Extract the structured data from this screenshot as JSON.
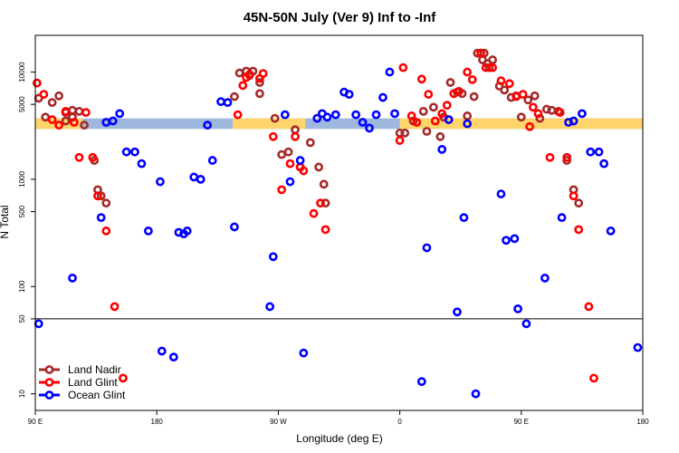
{
  "chart_data": {
    "type": "scatter",
    "title": "45N-50N July (Ver 9)   Inf to -Inf",
    "xlabel": "Longitude (deg E)",
    "ylabel": "N Total",
    "y_scale": "log",
    "xlim": [
      0,
      360
    ],
    "ylim": [
      7,
      22000
    ],
    "x_ticks": [
      {
        "x": 0,
        "label": "90 E"
      },
      {
        "x": 72,
        "label": "180"
      },
      {
        "x": 144,
        "label": "90 W"
      },
      {
        "x": 216,
        "label": "0"
      },
      {
        "x": 288,
        "label": "90 E"
      },
      {
        "x": 360,
        "label": "180"
      }
    ],
    "y_ticks": [
      {
        "v": 10,
        "label": "10"
      },
      {
        "v": 50,
        "label": "50"
      },
      {
        "v": 100,
        "label": "100"
      },
      {
        "v": 500,
        "label": "500"
      },
      {
        "v": 1000,
        "label": "1000"
      },
      {
        "v": 5000,
        "label": "5000"
      },
      {
        "v": 10000,
        "label": "10000"
      }
    ],
    "divider_y": 50,
    "grid": false,
    "legend_position": "bottom-left",
    "colors": {
      "land_mask": "#FFD56B",
      "ocean_mask": "#9FB7DD"
    },
    "mask_band": {
      "y_top": 3700,
      "y_bottom": 2950,
      "land_x_ranges": [
        [
          0,
          28
        ],
        [
          117,
          160
        ],
        [
          216,
          360
        ]
      ]
    },
    "series": [
      {
        "name": "Land Nadir",
        "color": "#A52A2A",
        "points": [
          [
            2,
            5700
          ],
          [
            6,
            3800
          ],
          [
            10,
            5200
          ],
          [
            14,
            6000
          ],
          [
            18,
            3500
          ],
          [
            18,
            4200
          ],
          [
            22,
            3800
          ],
          [
            22,
            4400
          ],
          [
            26,
            4300
          ],
          [
            29,
            3200
          ],
          [
            35,
            1500
          ],
          [
            37,
            800
          ],
          [
            39,
            700
          ],
          [
            42,
            600
          ],
          [
            118,
            5900
          ],
          [
            121,
            9800
          ],
          [
            125,
            10200
          ],
          [
            127,
            9300
          ],
          [
            129,
            10200
          ],
          [
            133,
            6300
          ],
          [
            133,
            8000
          ],
          [
            142,
            3700
          ],
          [
            146,
            1700
          ],
          [
            150,
            1800
          ],
          [
            154,
            2900
          ],
          [
            157,
            1300
          ],
          [
            163,
            2200
          ],
          [
            168,
            1300
          ],
          [
            171,
            900
          ],
          [
            172,
            600
          ],
          [
            216,
            2700
          ],
          [
            219,
            2700
          ],
          [
            224,
            3500
          ],
          [
            230,
            4300
          ],
          [
            232,
            2800
          ],
          [
            236,
            4700
          ],
          [
            240,
            2500
          ],
          [
            242,
            3800
          ],
          [
            246,
            8000
          ],
          [
            250,
            6500
          ],
          [
            253,
            6300
          ],
          [
            256,
            3900
          ],
          [
            260,
            5900
          ],
          [
            262,
            15000
          ],
          [
            265,
            13000
          ],
          [
            266,
            15000
          ],
          [
            268,
            12000
          ],
          [
            269,
            11000
          ],
          [
            271,
            13000
          ],
          [
            275,
            7400
          ],
          [
            278,
            6800
          ],
          [
            282,
            5800
          ],
          [
            285,
            6000
          ],
          [
            288,
            3800
          ],
          [
            292,
            5500
          ],
          [
            296,
            6000
          ],
          [
            299,
            3700
          ],
          [
            303,
            4500
          ],
          [
            306,
            4400
          ],
          [
            310,
            4300
          ],
          [
            315,
            1500
          ],
          [
            319,
            800
          ],
          [
            322,
            600
          ]
        ]
      },
      {
        "name": "Land Glint",
        "color": "#FF0000",
        "points": [
          [
            1,
            7900
          ],
          [
            5,
            6200
          ],
          [
            10,
            3600
          ],
          [
            14,
            3200
          ],
          [
            18,
            4300
          ],
          [
            23,
            3400
          ],
          [
            26,
            1600
          ],
          [
            30,
            4200
          ],
          [
            34,
            1600
          ],
          [
            37,
            700
          ],
          [
            42,
            330
          ],
          [
            47,
            65
          ],
          [
            52,
            14
          ],
          [
            120,
            4000
          ],
          [
            123,
            7500
          ],
          [
            125,
            8900
          ],
          [
            127,
            9500
          ],
          [
            133,
            8700
          ],
          [
            135,
            9700
          ],
          [
            141,
            2500
          ],
          [
            146,
            800
          ],
          [
            151,
            1400
          ],
          [
            154,
            2500
          ],
          [
            157,
            1300
          ],
          [
            159,
            1200
          ],
          [
            165,
            480
          ],
          [
            169,
            600
          ],
          [
            172,
            340
          ],
          [
            216,
            2300
          ],
          [
            218,
            11000
          ],
          [
            223,
            3900
          ],
          [
            226,
            3400
          ],
          [
            229,
            8600
          ],
          [
            233,
            6200
          ],
          [
            237,
            3500
          ],
          [
            241,
            4100
          ],
          [
            244,
            4900
          ],
          [
            248,
            6300
          ],
          [
            251,
            6600
          ],
          [
            256,
            10000
          ],
          [
            259,
            8500
          ],
          [
            264,
            15000
          ],
          [
            267,
            11000
          ],
          [
            271,
            11000
          ],
          [
            276,
            8300
          ],
          [
            281,
            7800
          ],
          [
            285,
            5900
          ],
          [
            289,
            6200
          ],
          [
            293,
            3100
          ],
          [
            295,
            4700
          ],
          [
            298,
            4100
          ],
          [
            305,
            1600
          ],
          [
            311,
            4200
          ],
          [
            315,
            1600
          ],
          [
            319,
            700
          ],
          [
            322,
            340
          ],
          [
            328,
            65
          ],
          [
            331,
            14
          ]
        ]
      },
      {
        "name": "Ocean Glint",
        "color": "#0000FF",
        "points": [
          [
            2,
            45
          ],
          [
            22,
            120
          ],
          [
            39,
            440
          ],
          [
            42,
            3400
          ],
          [
            46,
            3500
          ],
          [
            50,
            4100
          ],
          [
            54,
            1800
          ],
          [
            59,
            1800
          ],
          [
            63,
            1400
          ],
          [
            67,
            330
          ],
          [
            75,
            25
          ],
          [
            74,
            950
          ],
          [
            82,
            22
          ],
          [
            85,
            320
          ],
          [
            88,
            310
          ],
          [
            90,
            330
          ],
          [
            94,
            1050
          ],
          [
            98,
            1000
          ],
          [
            102,
            3200
          ],
          [
            105,
            1500
          ],
          [
            110,
            5300
          ],
          [
            114,
            5200
          ],
          [
            118,
            360
          ],
          [
            139,
            65
          ],
          [
            141,
            190
          ],
          [
            148,
            4000
          ],
          [
            151,
            950
          ],
          [
            157,
            1500
          ],
          [
            159,
            24
          ],
          [
            167,
            3700
          ],
          [
            170,
            4100
          ],
          [
            173,
            3800
          ],
          [
            178,
            4000
          ],
          [
            183,
            6500
          ],
          [
            186,
            6200
          ],
          [
            190,
            4000
          ],
          [
            194,
            3400
          ],
          [
            198,
            3000
          ],
          [
            202,
            4000
          ],
          [
            206,
            5800
          ],
          [
            210,
            10000
          ],
          [
            213,
            4100
          ],
          [
            229,
            13
          ],
          [
            232,
            230
          ],
          [
            241,
            1900
          ],
          [
            245,
            3600
          ],
          [
            250,
            58
          ],
          [
            254,
            440
          ],
          [
            256,
            3300
          ],
          [
            261,
            10
          ],
          [
            276,
            730
          ],
          [
            279,
            270
          ],
          [
            284,
            280
          ],
          [
            286,
            62
          ],
          [
            291,
            45
          ],
          [
            302,
            120
          ],
          [
            312,
            440
          ],
          [
            316,
            3400
          ],
          [
            319,
            3500
          ],
          [
            324,
            4100
          ],
          [
            329,
            1800
          ],
          [
            334,
            1800
          ],
          [
            337,
            1400
          ],
          [
            341,
            330
          ],
          [
            357,
            27
          ]
        ]
      }
    ]
  }
}
